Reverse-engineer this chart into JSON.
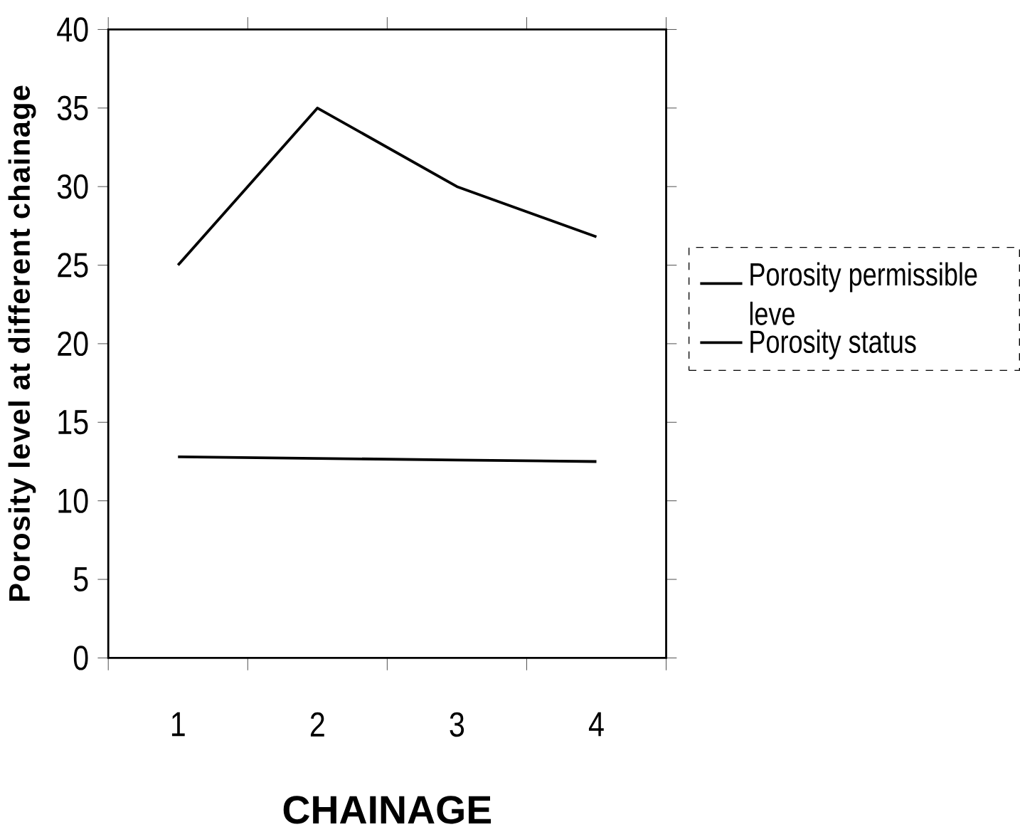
{
  "chart_data": {
    "type": "line",
    "xlabel": "CHAINAGE",
    "ylabel": "Porosity level at different chainage",
    "categories": [
      "1",
      "2",
      "3",
      "4"
    ],
    "series": [
      {
        "name": "Porosity permissible leve",
        "color": "#000000",
        "values": [
          12.8,
          12.7,
          12.6,
          12.5
        ]
      },
      {
        "name": "Porosity status",
        "color": "#000000",
        "values": [
          25,
          35,
          30,
          26.8
        ]
      }
    ],
    "ylim": [
      0,
      40
    ],
    "yticks": [
      0,
      5,
      10,
      15,
      20,
      25,
      30,
      35,
      40
    ],
    "legend": "right",
    "marker": "none",
    "line_style": "solid",
    "grid": false
  }
}
